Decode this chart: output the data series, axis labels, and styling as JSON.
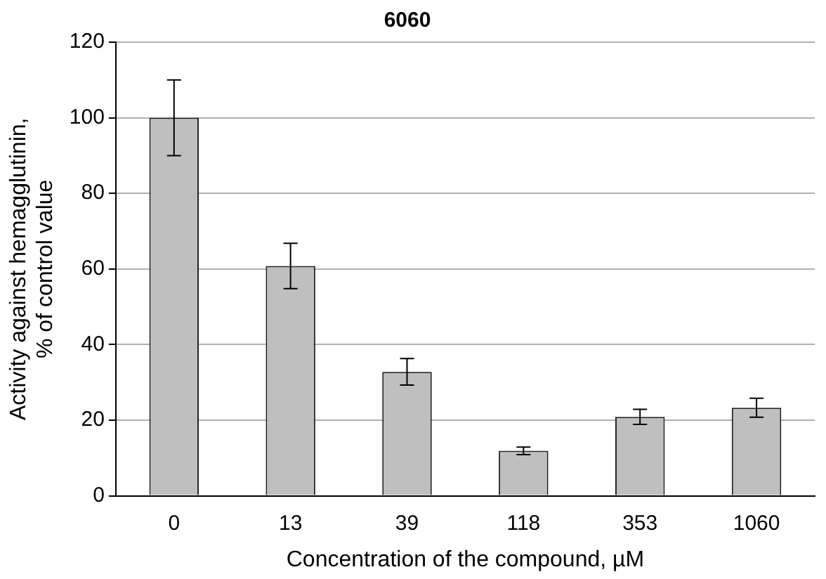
{
  "chart_data": {
    "type": "bar",
    "title": "6060",
    "xlabel": "Concentration of the compound, µM",
    "ylabel": "Activity against hemagglutinin,\n% of control value",
    "categories": [
      "0",
      "13",
      "39",
      "118",
      "353",
      "1060"
    ],
    "values": [
      100,
      60.8,
      32.8,
      11.9,
      20.9,
      23.3
    ],
    "errors": [
      10,
      6,
      3.5,
      1,
      2,
      2.5
    ],
    "color": "#bfbfbf",
    "ylim": [
      0,
      120
    ],
    "yticks": [
      0,
      20,
      40,
      60,
      80,
      100,
      120
    ],
    "grid": "y",
    "legend": false
  }
}
